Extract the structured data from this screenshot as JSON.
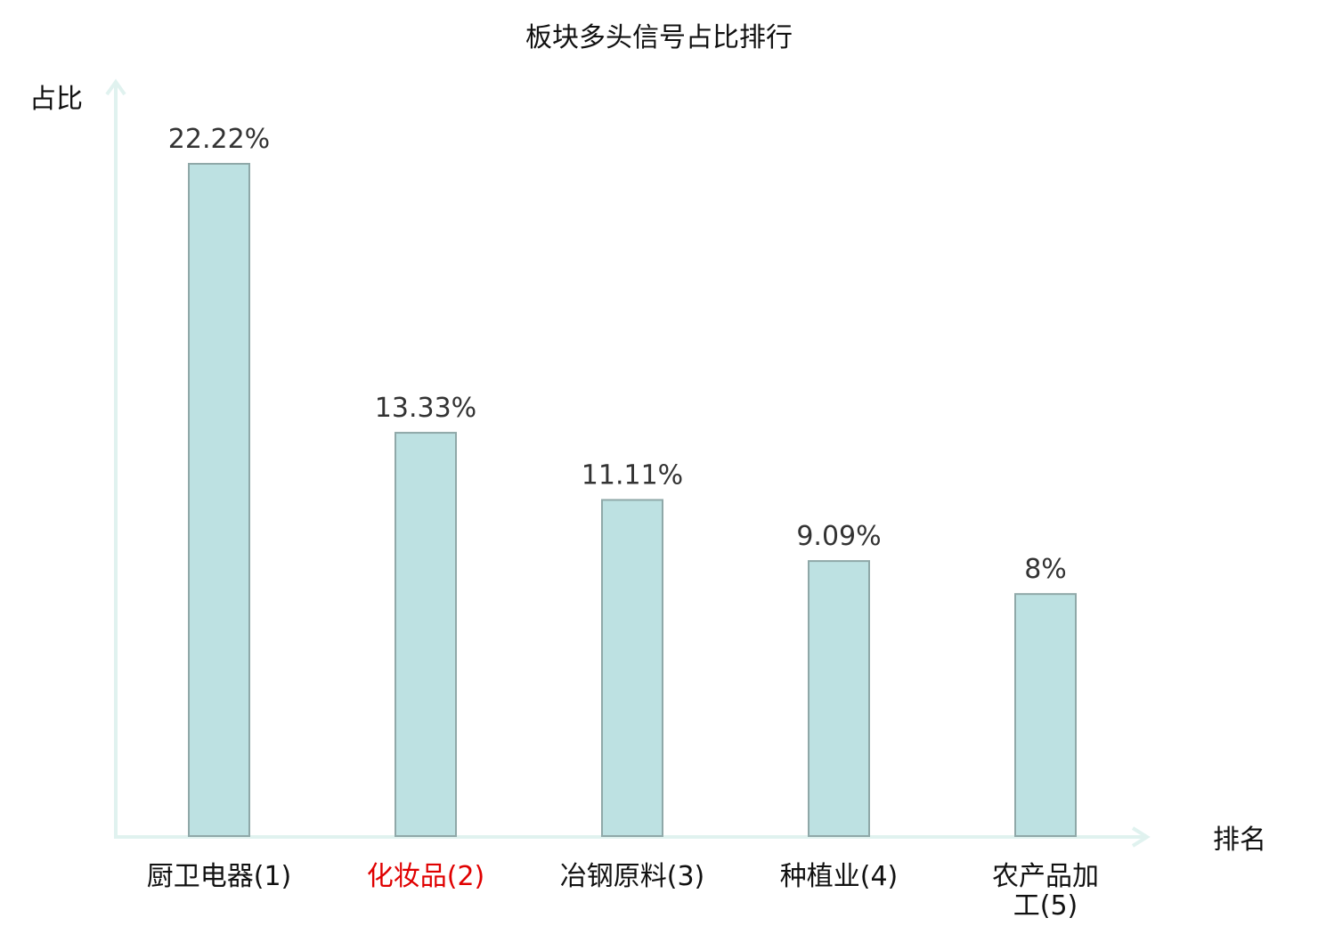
{
  "chart_data": {
    "type": "bar",
    "title": "板块多头信号占比排行",
    "ylabel": "占比",
    "xlabel": "排名",
    "categories": [
      [
        "厨卫电器(1)"
      ],
      [
        "化妆品(2)"
      ],
      [
        "冶钢原料(3)"
      ],
      [
        "种植业(4)"
      ],
      [
        "农产品加",
        "工(5)"
      ]
    ],
    "values": [
      22.22,
      13.33,
      11.11,
      9.09,
      8
    ],
    "value_labels": [
      "22.22%",
      "13.33%",
      "11.11%",
      "9.09%",
      "8%"
    ],
    "highlight_index": 1,
    "ylim": [
      0,
      25
    ],
    "grid": false
  },
  "colors": {
    "bar_fill": "#bde1e2",
    "bar_stroke": "#8fa8a8",
    "axis": "#e0f2ef",
    "highlight_text": "#e00000",
    "text": "#111111"
  }
}
